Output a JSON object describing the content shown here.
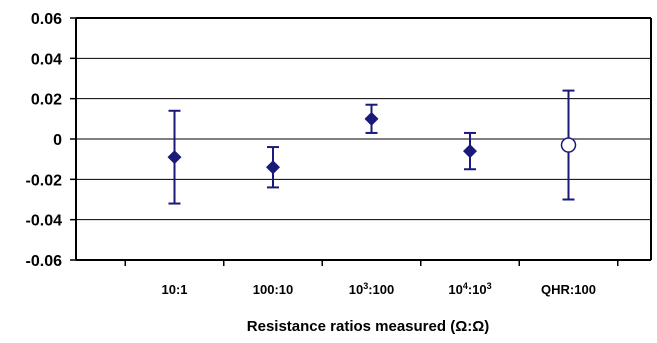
{
  "chart_data": {
    "type": "scatter",
    "title": "",
    "xlabel": "Resistance ratios measured (Ω:Ω)",
    "ylabel": "",
    "ylim": [
      -0.06,
      0.06
    ],
    "yticks": [
      0.06,
      0.04,
      0.02,
      0,
      -0.02,
      -0.04,
      -0.06
    ],
    "ytick_labels": [
      "0.06",
      "0.04",
      "0.02",
      "0",
      "-0.02",
      "-0.04",
      "-0.06"
    ],
    "grid": "horizontal",
    "categories": [
      {
        "base": "10:1",
        "sup1": "",
        "mid": "",
        "sup2": "",
        "tail": ""
      },
      {
        "base": "100:10",
        "sup1": "",
        "mid": "",
        "sup2": "",
        "tail": ""
      },
      {
        "base": "10",
        "sup1": "3",
        "mid": ":100",
        "sup2": "",
        "tail": ""
      },
      {
        "base": "10",
        "sup1": "4",
        "mid": ":10",
        "sup2": "3",
        "tail": ""
      },
      {
        "base": "QHR:100",
        "sup1": "",
        "mid": "",
        "sup2": "",
        "tail": ""
      }
    ],
    "points": [
      {
        "y": -0.009,
        "err_low": -0.032,
        "err_high": 0.014,
        "marker": "diamond"
      },
      {
        "y": -0.014,
        "err_low": -0.024,
        "err_high": -0.004,
        "marker": "diamond"
      },
      {
        "y": 0.01,
        "err_low": 0.003,
        "err_high": 0.017,
        "marker": "diamond"
      },
      {
        "y": -0.006,
        "err_low": -0.015,
        "err_high": 0.003,
        "marker": "diamond"
      },
      {
        "y": -0.003,
        "err_low": -0.03,
        "err_high": 0.024,
        "marker": "open-circle"
      }
    ],
    "colors": {
      "marker": "#1a1a7a",
      "errorbar": "#1a1a7a",
      "axis": "#000000",
      "grid": "#000000"
    }
  }
}
